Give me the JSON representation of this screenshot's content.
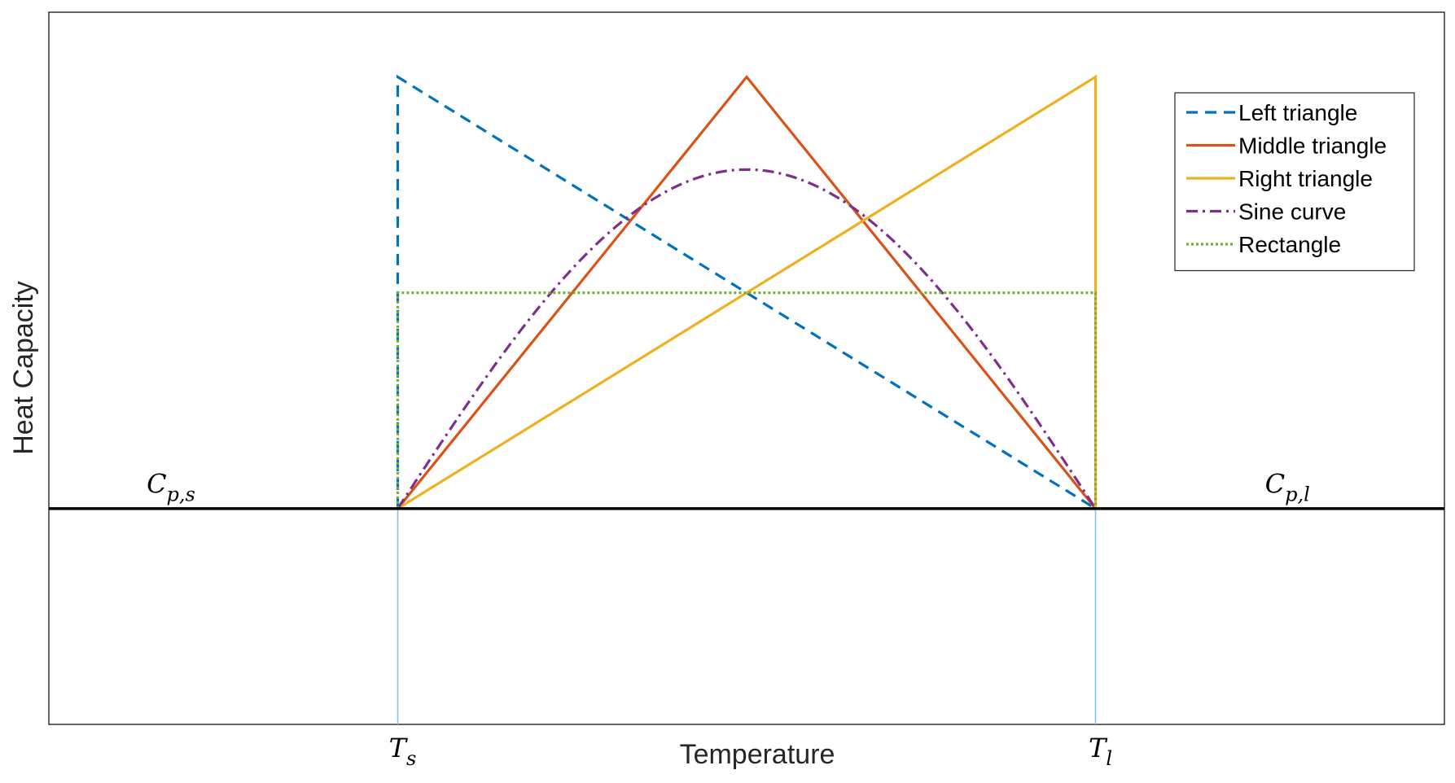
{
  "chart_data": {
    "type": "line",
    "xlabel": "Temperature",
    "ylabel": "Heat Capacity",
    "xlim": [
      -1,
      3
    ],
    "ylim": [
      -1,
      2.3
    ],
    "x_ticks": [
      {
        "x": 0,
        "main": "T",
        "sub": "s"
      },
      {
        "x": 2,
        "main": "T",
        "sub": "l"
      }
    ],
    "baseline": {
      "y": 0,
      "color": "#000000"
    },
    "annotations": [
      {
        "x": -0.65,
        "y": 0.08,
        "main": "C",
        "sub": "p,s"
      },
      {
        "x": 2.55,
        "y": 0.08,
        "main": "C",
        "sub": "p,l"
      }
    ],
    "legend_position": "top-right",
    "grid": false,
    "series": [
      {
        "name": "Left triangle",
        "color": "#0072BD",
        "dash": "dashed",
        "x": [
          0,
          0,
          2
        ],
        "y": [
          0,
          2,
          0
        ]
      },
      {
        "name": "Middle triangle",
        "color": "#D95319",
        "dash": "solid",
        "x": [
          0,
          1,
          2
        ],
        "y": [
          0,
          2,
          0
        ]
      },
      {
        "name": "Right triangle",
        "color": "#EDB120",
        "dash": "solid",
        "x": [
          0,
          2,
          2
        ],
        "y": [
          0,
          2,
          0
        ]
      },
      {
        "name": "Sine curve",
        "color": "#7E2F8E",
        "dash": "dashdot",
        "function": "sine",
        "x_range": [
          0,
          2
        ],
        "amplitude": 1.571
      },
      {
        "name": "Rectangle",
        "color": "#77AC30",
        "dash": "dotted",
        "x": [
          0,
          0,
          2,
          2
        ],
        "y": [
          0,
          1,
          1,
          0
        ]
      }
    ]
  }
}
